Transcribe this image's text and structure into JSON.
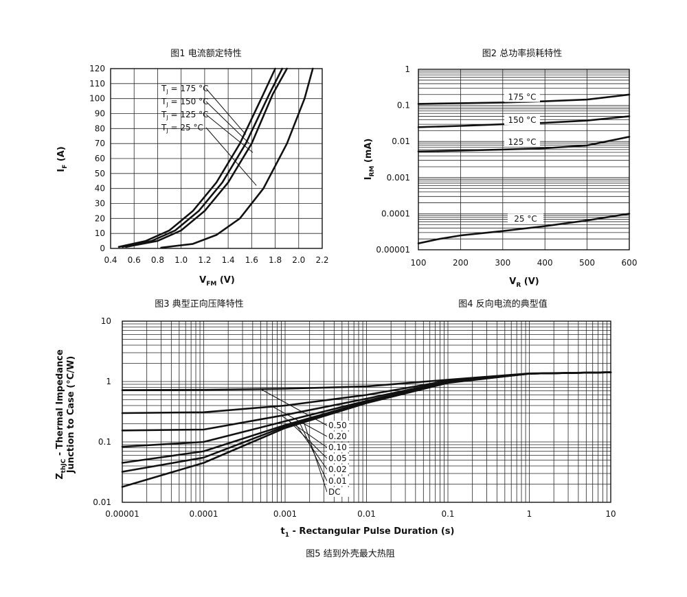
{
  "chart_data": [
    {
      "id": "fig1",
      "type": "line",
      "title": "图1 电流额定特性",
      "xlabel": "VFM (V)",
      "ylabel": "IF (A)",
      "xlim": [
        0.4,
        2.2
      ],
      "ylim": [
        0,
        120
      ],
      "xticks": [
        0.4,
        0.6,
        0.8,
        1.0,
        1.2,
        1.4,
        1.6,
        1.8,
        2.0,
        2.2
      ],
      "xtick_labels": [
        "0.4",
        "0.6",
        "0.8",
        "1.0",
        "1.2",
        "1.4",
        "1.6",
        "1.8",
        "2.0",
        "2.2"
      ],
      "yticks": [
        0,
        10,
        20,
        30,
        40,
        50,
        60,
        70,
        80,
        90,
        100,
        110,
        120
      ],
      "ytick_labels": [
        "0",
        "10",
        "20",
        "30",
        "40",
        "50",
        "60",
        "70",
        "80",
        "90",
        "100",
        "110",
        "120"
      ],
      "grid": true,
      "series": [
        {
          "name": "TJ = 175 °C",
          "points": [
            [
              0.47,
              1
            ],
            [
              0.7,
              5
            ],
            [
              0.9,
              12
            ],
            [
              1.1,
              25
            ],
            [
              1.3,
              44
            ],
            [
              1.5,
              70
            ],
            [
              1.7,
              103
            ],
            [
              1.8,
              120
            ]
          ]
        },
        {
          "name": "TJ = 150 °C",
          "points": [
            [
              0.5,
              1
            ],
            [
              0.75,
              5
            ],
            [
              0.95,
              12
            ],
            [
              1.15,
              25
            ],
            [
              1.35,
              44
            ],
            [
              1.55,
              70
            ],
            [
              1.75,
              103
            ],
            [
              1.86,
              120
            ]
          ]
        },
        {
          "name": "TJ = 125 °C",
          "points": [
            [
              0.53,
              1
            ],
            [
              0.8,
              5
            ],
            [
              1.0,
              12
            ],
            [
              1.2,
              25
            ],
            [
              1.4,
              44
            ],
            [
              1.6,
              70
            ],
            [
              1.78,
              103
            ],
            [
              1.9,
              120
            ]
          ]
        },
        {
          "name": "TJ = 25 °C",
          "points": [
            [
              0.83,
              0.5
            ],
            [
              1.1,
              3
            ],
            [
              1.3,
              9
            ],
            [
              1.5,
              20
            ],
            [
              1.7,
              40
            ],
            [
              1.9,
              70
            ],
            [
              2.05,
              100
            ],
            [
              2.12,
              120
            ]
          ]
        }
      ],
      "annotations": [
        "TJ = 175 °C",
        "TJ = 150 °C",
        "TJ = 125 °C",
        "TJ = 25 °C"
      ]
    },
    {
      "id": "fig2",
      "type": "line",
      "title": "图2 总功率损耗特性",
      "xlabel": "VR (V)",
      "ylabel": "IRM (mA)",
      "yscale": "log",
      "xlim": [
        100,
        600
      ],
      "ylim": [
        1e-05,
        1
      ],
      "xticks": [
        100,
        200,
        300,
        400,
        500,
        600
      ],
      "xtick_labels": [
        "100",
        "200",
        "300",
        "400",
        "500",
        "600"
      ],
      "yticks": [
        1e-05,
        0.0001,
        0.001,
        0.01,
        0.1,
        1
      ],
      "ytick_labels": [
        "0.00001",
        "0.0001",
        "0.001",
        "0.01",
        "0.1",
        "1"
      ],
      "grid": true,
      "series": [
        {
          "name": "175 °C",
          "points": [
            [
              100,
              0.11
            ],
            [
              200,
              0.115
            ],
            [
              300,
              0.12
            ],
            [
              400,
              0.13
            ],
            [
              500,
              0.145
            ],
            [
              600,
              0.2
            ]
          ]
        },
        {
          "name": "150 °C",
          "points": [
            [
              100,
              0.025
            ],
            [
              200,
              0.027
            ],
            [
              300,
              0.03
            ],
            [
              400,
              0.033
            ],
            [
              500,
              0.038
            ],
            [
              600,
              0.05
            ]
          ]
        },
        {
          "name": "125 °C",
          "points": [
            [
              100,
              0.0053
            ],
            [
              200,
              0.0056
            ],
            [
              300,
              0.006
            ],
            [
              400,
              0.0065
            ],
            [
              500,
              0.0078
            ],
            [
              600,
              0.0135
            ]
          ]
        },
        {
          "name": "25 °C",
          "points": [
            [
              100,
              1.5e-05
            ],
            [
              150,
              2e-05
            ],
            [
              200,
              2.5e-05
            ],
            [
              300,
              3.3e-05
            ],
            [
              400,
              4.5e-05
            ],
            [
              500,
              6.5e-05
            ],
            [
              600,
              0.0001
            ]
          ]
        }
      ],
      "annotations": [
        "175 °C",
        "150 °C",
        "125 °C",
        "25 °C"
      ]
    },
    {
      "id": "fig5",
      "type": "line",
      "xscale": "log",
      "yscale": "log",
      "xlabel": "t1 - Rectangular Pulse Duration (s)",
      "ylabel": "ZthJC - Thermal Impedance Junction to Case (°C/W)",
      "xlim": [
        1e-05,
        10
      ],
      "ylim": [
        0.01,
        10
      ],
      "xticks": [
        1e-05,
        0.0001,
        0.001,
        0.01,
        0.1,
        1,
        10
      ],
      "xtick_labels": [
        "0.00001",
        "0.0001",
        "0.001",
        "0.01",
        "0.1",
        "1",
        "10"
      ],
      "yticks": [
        0.01,
        0.1,
        1,
        10
      ],
      "ytick_labels": [
        "0.01",
        "0.1",
        "1",
        "10"
      ],
      "grid": true,
      "series": [
        {
          "name": "0.50",
          "points": [
            [
              1e-05,
              0.72
            ],
            [
              0.0001,
              0.73
            ],
            [
              0.001,
              0.76
            ],
            [
              0.01,
              0.83
            ],
            [
              0.1,
              1.07
            ],
            [
              1,
              1.36
            ],
            [
              10,
              1.42
            ]
          ]
        },
        {
          "name": "0.20",
          "points": [
            [
              1e-05,
              0.3
            ],
            [
              0.0001,
              0.31
            ],
            [
              0.001,
              0.4
            ],
            [
              0.01,
              0.6
            ],
            [
              0.1,
              1.03
            ],
            [
              1,
              1.35
            ],
            [
              10,
              1.42
            ]
          ]
        },
        {
          "name": "0.10",
          "points": [
            [
              1e-05,
              0.155
            ],
            [
              0.0001,
              0.16
            ],
            [
              0.001,
              0.28
            ],
            [
              0.01,
              0.52
            ],
            [
              0.1,
              1.0
            ],
            [
              1,
              1.35
            ],
            [
              10,
              1.42
            ]
          ]
        },
        {
          "name": "0.05",
          "points": [
            [
              1e-05,
              0.083
            ],
            [
              0.0001,
              0.1
            ],
            [
              0.001,
              0.22
            ],
            [
              0.01,
              0.48
            ],
            [
              0.1,
              0.98
            ],
            [
              1,
              1.35
            ],
            [
              10,
              1.42
            ]
          ]
        },
        {
          "name": "0.02",
          "points": [
            [
              1e-05,
              0.045
            ],
            [
              0.0001,
              0.07
            ],
            [
              0.001,
              0.19
            ],
            [
              0.01,
              0.46
            ],
            [
              0.1,
              0.97
            ],
            [
              1,
              1.35
            ],
            [
              10,
              1.42
            ]
          ]
        },
        {
          "name": "0.01",
          "points": [
            [
              1e-05,
              0.032
            ],
            [
              0.0001,
              0.055
            ],
            [
              0.001,
              0.18
            ],
            [
              0.01,
              0.45
            ],
            [
              0.1,
              0.96
            ],
            [
              1,
              1.35
            ],
            [
              10,
              1.42
            ]
          ]
        },
        {
          "name": "DC",
          "points": [
            [
              1e-05,
              0.018
            ],
            [
              0.0001,
              0.045
            ],
            [
              0.001,
              0.17
            ],
            [
              0.01,
              0.44
            ],
            [
              0.1,
              0.95
            ],
            [
              1,
              1.35
            ],
            [
              10,
              1.42
            ]
          ]
        }
      ],
      "annotations": [
        "0.50",
        "0.20",
        "0.10",
        "0.05",
        "0.02",
        "0.01",
        "DC"
      ]
    }
  ],
  "captions": {
    "fig3": "图3 典型正向压降特性",
    "fig4": "图4 反向电流的典型值",
    "fig5": "图5 结到外壳最大热阻"
  }
}
